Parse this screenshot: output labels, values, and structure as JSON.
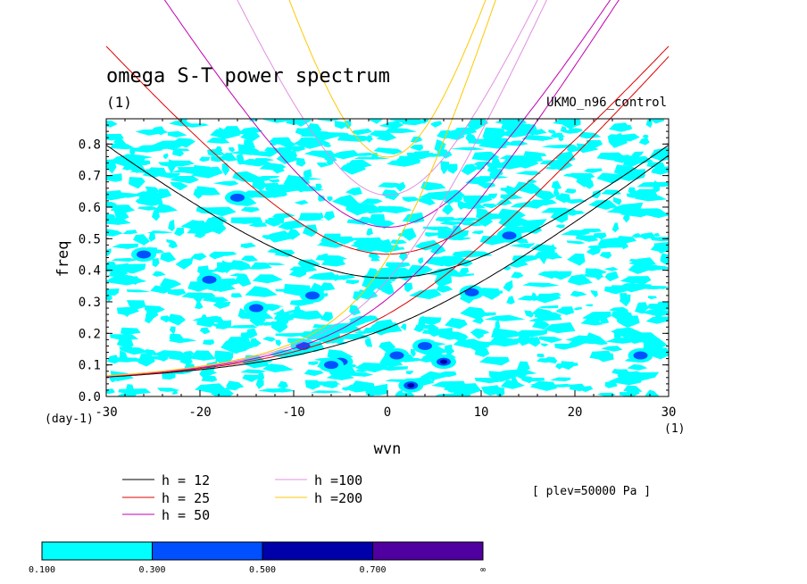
{
  "chart_data": {
    "type": "heatmap",
    "title": "omega S-T power spectrum",
    "subtitle": "(1)",
    "run_label": "UKMO_n96_control",
    "xlabel": "wvn",
    "ylabel": "freq",
    "x_unit": "(1)",
    "y_unit": "(day-1)",
    "xlim": [
      -30,
      30
    ],
    "ylim": [
      0,
      0.88
    ],
    "x_ticks": [
      -30,
      -20,
      -10,
      0,
      10,
      20,
      30
    ],
    "x_tick_labels": [
      "-30",
      "-20",
      "-10",
      "0",
      "10",
      "20",
      "30"
    ],
    "y_ticks": [
      0,
      0.1,
      0.2,
      0.3,
      0.4,
      0.5,
      0.6,
      0.7,
      0.8
    ],
    "y_tick_labels": [
      "0.0",
      "0.1",
      "0.2",
      "0.3",
      "0.4",
      "0.5",
      "0.6",
      "0.7",
      "0.8"
    ],
    "plev_note": "[ plev=50000 Pa ]",
    "colorbar": {
      "boundaries": [
        "0.100",
        "0.300",
        "0.500",
        "0.700",
        "∞"
      ],
      "colors": [
        "#00ffff",
        "#0050ff",
        "#0000aa",
        "#5000a0"
      ]
    },
    "curves": [
      {
        "name": "h = 12",
        "h": 12,
        "color": "#000000"
      },
      {
        "name": "h = 25",
        "h": 25,
        "color": "#dd0000"
      },
      {
        "name": "h = 50",
        "h": 50,
        "color": "#c000b0"
      },
      {
        "name": "h =100",
        "h": 100,
        "color": "#e090e0"
      },
      {
        "name": "h =200",
        "h": 200,
        "color": "#ffc800"
      }
    ],
    "blobs": [
      {
        "x": -19,
        "y": 0.37,
        "level": 1
      },
      {
        "x": -14,
        "y": 0.28,
        "level": 1
      },
      {
        "x": -8,
        "y": 0.32,
        "level": 1
      },
      {
        "x": -9,
        "y": 0.16,
        "level": 1
      },
      {
        "x": -5,
        "y": 0.11,
        "level": 1
      },
      {
        "x": 2.5,
        "y": 0.035,
        "level": 2
      },
      {
        "x": 4,
        "y": 0.16,
        "level": 1
      },
      {
        "x": 6,
        "y": 0.11,
        "level": 2
      },
      {
        "x": 9,
        "y": 0.33,
        "level": 1
      },
      {
        "x": -26,
        "y": 0.45,
        "level": 1
      },
      {
        "x": -16,
        "y": 0.63,
        "level": 1
      },
      {
        "x": 13,
        "y": 0.51,
        "level": 1
      },
      {
        "x": 27,
        "y": 0.13,
        "level": 1
      },
      {
        "x": -6,
        "y": 0.1,
        "level": 1
      },
      {
        "x": 1,
        "y": 0.13,
        "level": 1
      }
    ]
  }
}
